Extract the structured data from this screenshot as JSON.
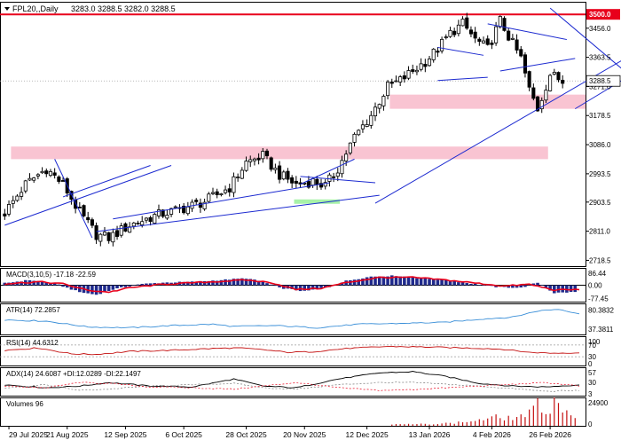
{
  "header": {
    "symbol": "FPL20,,Daily",
    "ohlc": "3283.0 3288.5 3282.0 3288.5"
  },
  "colors": {
    "up": "#000000",
    "down": "#000000",
    "resistance": "#e8001b",
    "zone": "#f9c4d2",
    "support_zone": "#a8f2a8",
    "trend": "#1c2ad0",
    "macd_hist": "#1f2a8c",
    "signal": "#e8001b",
    "atr": "#3a8fd8",
    "rsi": "#c41010",
    "volume": "#c41010",
    "price_tag_bg": "#ffffff"
  },
  "chart_data": [
    {
      "type": "candlestick",
      "title": "FPL20,,Daily",
      "ylim": [
        2700,
        3540
      ],
      "y_ticks": [
        "3500.0",
        "3456.0",
        "3363.5",
        "3271.0",
        "3178.5",
        "3086.0",
        "2993.5",
        "2903.5",
        "2811.0",
        "2718.5"
      ],
      "current_label": "3288.5",
      "resistance_label": "3500.0",
      "x_tick_labels": [
        "29 Jul 2025",
        "21 Aug 2025",
        "12 Sep 2025",
        "6 Oct 2025",
        "28 Oct 2025",
        "20 Nov 2025",
        "12 Dec 2025",
        "13 Jan 2026",
        "4 Feb 2026",
        "26 Feb 2026"
      ],
      "close_anchors": [
        [
          0,
          2870
        ],
        [
          5,
          2960
        ],
        [
          10,
          3010
        ],
        [
          14,
          2960
        ],
        [
          18,
          2870
        ],
        [
          22,
          2800
        ],
        [
          25,
          2790
        ],
        [
          30,
          2830
        ],
        [
          36,
          2860
        ],
        [
          42,
          2880
        ],
        [
          48,
          2905
        ],
        [
          54,
          2950
        ],
        [
          58,
          3030
        ],
        [
          62,
          3050
        ],
        [
          66,
          2990
        ],
        [
          70,
          2960
        ],
        [
          74,
          2970
        ],
        [
          77,
          2955
        ],
        [
          80,
          3010
        ],
        [
          84,
          3110
        ],
        [
          88,
          3180
        ],
        [
          92,
          3270
        ],
        [
          95,
          3290
        ],
        [
          98,
          3320
        ],
        [
          101,
          3350
        ],
        [
          104,
          3390
        ],
        [
          107,
          3440
        ],
        [
          110,
          3470
        ],
        [
          113,
          3420
        ],
        [
          116,
          3390
        ],
        [
          119,
          3480
        ],
        [
          121,
          3430
        ],
        [
          124,
          3360
        ],
        [
          126,
          3260
        ],
        [
          128,
          3200
        ],
        [
          131,
          3310
        ],
        [
          134,
          3288
        ]
      ],
      "resistance_level": 3500,
      "zones": [
        {
          "start": 2,
          "end": 130,
          "low": 3040,
          "high": 3080,
          "color": "zone"
        },
        {
          "start": 93,
          "end": 160,
          "low": 3200,
          "high": 3245,
          "color": "zone"
        },
        {
          "start": 70,
          "end": 80,
          "low": 2898,
          "high": 2912,
          "color": "support_zone"
        }
      ],
      "trendlines": [
        {
          "x1": 0,
          "y1": 2830,
          "x2": 40,
          "y2": 3020
        },
        {
          "x1": 12,
          "y1": 3040,
          "x2": 21,
          "y2": 2790
        },
        {
          "x1": 14,
          "y1": 2920,
          "x2": 35,
          "y2": 3020
        },
        {
          "x1": 22,
          "y1": 2810,
          "x2": 90,
          "y2": 2925
        },
        {
          "x1": 26,
          "y1": 2850,
          "x2": 78,
          "y2": 2965
        },
        {
          "x1": 71,
          "y1": 2960,
          "x2": 84,
          "y2": 3040
        },
        {
          "x1": 71,
          "y1": 2985,
          "x2": 89,
          "y2": 2965
        },
        {
          "x1": 89,
          "y1": 2900,
          "x2": 153,
          "y2": 3390
        },
        {
          "x1": 104,
          "y1": 3395,
          "x2": 115,
          "y2": 3370
        },
        {
          "x1": 104,
          "y1": 3290,
          "x2": 116,
          "y2": 3300
        },
        {
          "x1": 116,
          "y1": 3470,
          "x2": 135,
          "y2": 3420
        },
        {
          "x1": 119,
          "y1": 3320,
          "x2": 137,
          "y2": 3360
        },
        {
          "x1": 131,
          "y1": 3520,
          "x2": 152,
          "y2": 3285
        },
        {
          "x1": 137,
          "y1": 3200,
          "x2": 152,
          "y2": 3320
        }
      ]
    },
    {
      "type": "line",
      "label": "MACD(3,10,5) -17.18 -22.59",
      "ylim": [
        -95,
        100
      ],
      "y_ticks": [
        "86.44",
        "0.00",
        "-77.45"
      ],
      "hist_anchors": [
        [
          0,
          12
        ],
        [
          6,
          30
        ],
        [
          12,
          10
        ],
        [
          18,
          -40
        ],
        [
          22,
          -55
        ],
        [
          26,
          -25
        ],
        [
          32,
          5
        ],
        [
          38,
          15
        ],
        [
          46,
          20
        ],
        [
          52,
          30
        ],
        [
          58,
          40
        ],
        [
          62,
          20
        ],
        [
          66,
          -15
        ],
        [
          72,
          -35
        ],
        [
          78,
          -10
        ],
        [
          82,
          25
        ],
        [
          88,
          50
        ],
        [
          94,
          55
        ],
        [
          100,
          40
        ],
        [
          106,
          30
        ],
        [
          112,
          10
        ],
        [
          118,
          -10
        ],
        [
          124,
          -15
        ],
        [
          128,
          15
        ],
        [
          132,
          -45
        ],
        [
          138,
          -38
        ]
      ],
      "signal_anchors": [
        [
          0,
          8
        ],
        [
          8,
          20
        ],
        [
          14,
          8
        ],
        [
          20,
          -30
        ],
        [
          25,
          -40
        ],
        [
          30,
          -15
        ],
        [
          38,
          5
        ],
        [
          50,
          20
        ],
        [
          58,
          30
        ],
        [
          64,
          15
        ],
        [
          70,
          -25
        ],
        [
          76,
          -18
        ],
        [
          82,
          15
        ],
        [
          90,
          45
        ],
        [
          98,
          45
        ],
        [
          106,
          30
        ],
        [
          114,
          10
        ],
        [
          120,
          -5
        ],
        [
          126,
          5
        ],
        [
          132,
          -28
        ],
        [
          138,
          -25
        ]
      ]
    },
    {
      "type": "line",
      "label": "ATR(14) 72.2857",
      "ylim": [
        25,
        95
      ],
      "y_ticks": [
        "80.3832",
        "37.3811"
      ],
      "anchors": [
        [
          0,
          58
        ],
        [
          10,
          55
        ],
        [
          20,
          42
        ],
        [
          30,
          40
        ],
        [
          40,
          45
        ],
        [
          50,
          48
        ],
        [
          55,
          43
        ],
        [
          65,
          45
        ],
        [
          75,
          40
        ],
        [
          85,
          48
        ],
        [
          95,
          50
        ],
        [
          105,
          52
        ],
        [
          115,
          60
        ],
        [
          122,
          64
        ],
        [
          128,
          78
        ],
        [
          133,
          82
        ],
        [
          138,
          72
        ]
      ]
    },
    {
      "type": "line",
      "label": "RSI(14) 44.6312",
      "ylim": [
        0,
        100
      ],
      "y_ticks": [
        "100",
        "70",
        "30",
        "0"
      ],
      "levels": [
        70,
        30
      ],
      "anchors": [
        [
          0,
          52
        ],
        [
          8,
          60
        ],
        [
          16,
          40
        ],
        [
          22,
          38
        ],
        [
          30,
          48
        ],
        [
          40,
          52
        ],
        [
          50,
          58
        ],
        [
          56,
          60
        ],
        [
          62,
          54
        ],
        [
          68,
          45
        ],
        [
          74,
          47
        ],
        [
          82,
          58
        ],
        [
          92,
          65
        ],
        [
          102,
          63
        ],
        [
          110,
          60
        ],
        [
          116,
          58
        ],
        [
          120,
          55
        ],
        [
          126,
          45
        ],
        [
          132,
          42
        ],
        [
          138,
          44
        ]
      ]
    },
    {
      "type": "line",
      "label": "ADX(14) 24.6087 +DI:12.0289 -DI:22.1497",
      "ylim": [
        0,
        65
      ],
      "y_ticks": [
        "57",
        "30",
        "3"
      ],
      "adx_anchors": [
        [
          0,
          25
        ],
        [
          10,
          18
        ],
        [
          18,
          22
        ],
        [
          25,
          30
        ],
        [
          35,
          22
        ],
        [
          45,
          20
        ],
        [
          55,
          38
        ],
        [
          62,
          22
        ],
        [
          70,
          18
        ],
        [
          80,
          38
        ],
        [
          90,
          52
        ],
        [
          98,
          55
        ],
        [
          106,
          44
        ],
        [
          114,
          28
        ],
        [
          122,
          22
        ],
        [
          130,
          20
        ],
        [
          138,
          25
        ]
      ],
      "plus_di_anchors": [
        [
          0,
          18
        ],
        [
          10,
          25
        ],
        [
          18,
          12
        ],
        [
          25,
          15
        ],
        [
          35,
          22
        ],
        [
          45,
          25
        ],
        [
          55,
          28
        ],
        [
          62,
          18
        ],
        [
          70,
          15
        ],
        [
          80,
          25
        ],
        [
          90,
          30
        ],
        [
          98,
          30
        ],
        [
          106,
          26
        ],
        [
          114,
          22
        ],
        [
          122,
          16
        ],
        [
          130,
          10
        ],
        [
          138,
          12
        ]
      ],
      "minus_di_anchors": [
        [
          0,
          22
        ],
        [
          10,
          18
        ],
        [
          18,
          30
        ],
        [
          25,
          28
        ],
        [
          35,
          20
        ],
        [
          45,
          18
        ],
        [
          55,
          15
        ],
        [
          62,
          22
        ],
        [
          70,
          30
        ],
        [
          80,
          18
        ],
        [
          90,
          12
        ],
        [
          98,
          14
        ],
        [
          106,
          18
        ],
        [
          114,
          22
        ],
        [
          122,
          26
        ],
        [
          130,
          30
        ],
        [
          138,
          22
        ]
      ]
    },
    {
      "type": "bar",
      "label": "Volumes 96",
      "ylim": [
        0,
        25500
      ],
      "y_ticks": [
        "24900",
        "0"
      ],
      "active_start": 93,
      "anchors": [
        [
          93,
          1500
        ],
        [
          100,
          1800
        ],
        [
          108,
          3000
        ],
        [
          114,
          6000
        ],
        [
          118,
          9000
        ],
        [
          122,
          8000
        ],
        [
          126,
          13000
        ],
        [
          128,
          22000
        ],
        [
          130,
          14000
        ],
        [
          132,
          24900
        ],
        [
          134,
          20000
        ],
        [
          136,
          12000
        ],
        [
          138,
          9600
        ]
      ]
    }
  ]
}
